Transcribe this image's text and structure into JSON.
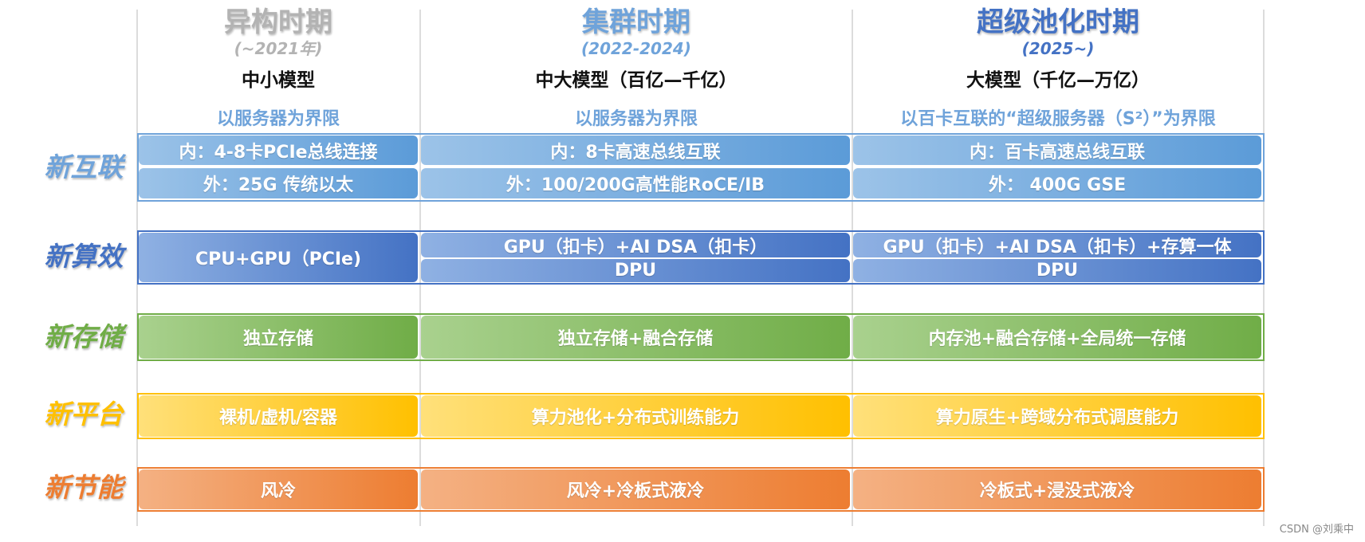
{
  "eras": [
    {
      "title": "异构时期",
      "years": "(~2021年)",
      "model": "中小模型",
      "boundary": "以服务器为界限",
      "title_color": "#b3b3b3",
      "years_color": "#b3b3b3"
    },
    {
      "title": "集群时期",
      "years": "(2022-2024)",
      "model": "中大模型（百亿—千亿）",
      "boundary": "以服务器为界限",
      "title_color": "#6fa3da",
      "years_color": "#6fa3da"
    },
    {
      "title": "超级池化时期",
      "years": "(2025~)",
      "model": "大模型（千亿—万亿）",
      "boundary": "以百卡互联的“超级服务器（S²）”为界限",
      "title_color": "#4472c4",
      "years_color": "#4472c4"
    }
  ],
  "rows": {
    "interconnect": {
      "label": "新互联",
      "color": "#6fa3da",
      "inner": [
        "内：4-8卡PCIe总线连接",
        "内：8卡高速总线互联",
        "内：百卡高速总线互联"
      ],
      "outer": [
        "外：25G 传统以太",
        "外：100/200G高性能RoCE/IB",
        "外： 400G GSE"
      ]
    },
    "compute": {
      "label": "新算效",
      "color": "#4472c4",
      "era1": "CPU+GPU（PCIe)",
      "era2_top": "GPU（扣卡）+AI DSA（扣卡）",
      "era2_bottom": "DPU",
      "era3_top": "GPU（扣卡）+AI DSA（扣卡）+存算一体",
      "era3_bottom": "DPU"
    },
    "storage": {
      "label": "新存储",
      "color": "#70ad47",
      "cells": [
        "独立存储",
        "独立存储+融合存储",
        "内存池+融合存储+全局统一存储"
      ]
    },
    "platform": {
      "label": "新平台",
      "color": "#ffc000",
      "cells": [
        "裸机/虚机/容器",
        "算力池化+分布式训练能力",
        "算力原生+跨域分布式调度能力"
      ]
    },
    "energy": {
      "label": "新节能",
      "color": "#ed7d31",
      "cells": [
        "风冷",
        "风冷+冷板式液冷",
        "冷板式+浸没式液冷"
      ]
    }
  },
  "watermark": "CSDN @刘乘中"
}
